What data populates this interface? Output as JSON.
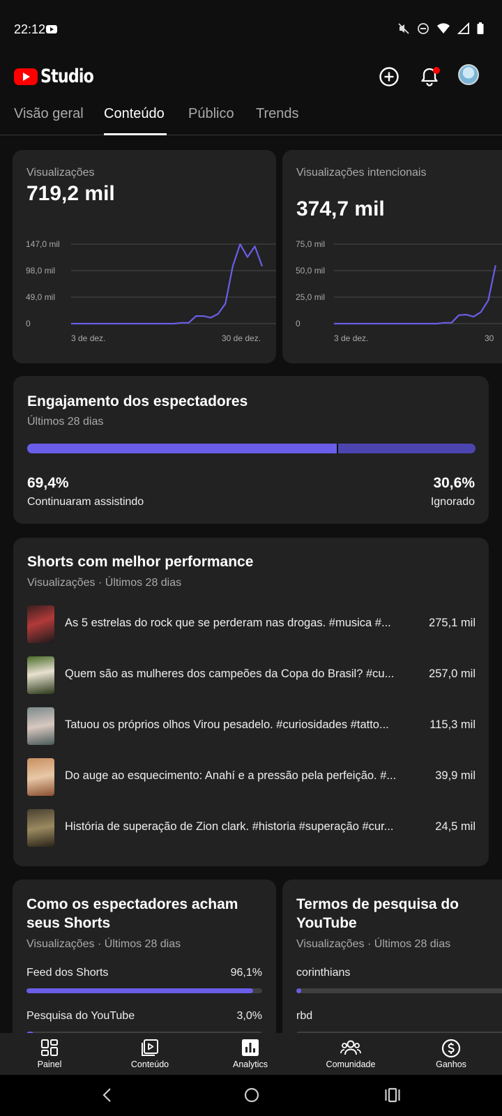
{
  "status_bar": {
    "time": "22:12"
  },
  "header": {
    "logo_text": "Studio"
  },
  "tabs": [
    {
      "label": "Visão geral"
    },
    {
      "label": "Conteúdo"
    },
    {
      "label": "Público"
    },
    {
      "label": "Trends"
    }
  ],
  "metrics": [
    {
      "label": "Visualizações",
      "value": "719,2 mil",
      "chart_data": {
        "type": "line",
        "y_ticks": [
          "147,0 mil",
          "98,0 mil",
          "49,0 mil",
          "0"
        ],
        "ylim": [
          0,
          147000
        ],
        "x_ticks": [
          "3 de dez.",
          "30 de dez."
        ],
        "values": [
          0,
          0,
          0,
          0,
          0,
          0,
          0,
          0,
          0,
          0,
          0,
          0,
          0,
          0,
          0,
          1500,
          1500,
          14000,
          14000,
          11000,
          18000,
          37000,
          106000,
          147000,
          123000,
          143000,
          106000
        ]
      }
    },
    {
      "label": "Visualizações intencionais",
      "value": "374,7 mil",
      "chart_data": {
        "type": "line",
        "y_ticks": [
          "75,0 mil",
          "50,0 mil",
          "25,0 mil",
          "0"
        ],
        "ylim": [
          0,
          75000
        ],
        "x_ticks": [
          "3 de dez.",
          "30"
        ],
        "values": [
          0,
          0,
          0,
          0,
          0,
          0,
          0,
          0,
          0,
          0,
          0,
          0,
          0,
          0,
          0,
          800,
          800,
          8000,
          8500,
          6500,
          11000,
          22000,
          55000
        ]
      }
    }
  ],
  "engagement": {
    "title": "Engajamento dos espectadores",
    "subtitle": "Últimos 28 dias",
    "continued_pct": "69,4%",
    "continued_label": "Continuaram assistindo",
    "continued_fraction": 0.694,
    "skipped_pct": "30,6%",
    "skipped_label": "Ignorado"
  },
  "top_shorts": {
    "title": "Shorts com melhor performance",
    "subtitle": "Visualizações · Últimos 28 dias",
    "items": [
      {
        "title": "As 5 estrelas do rock que se perderam nas drogas. #musica #...",
        "views": "275,1 mil"
      },
      {
        "title": "Quem são as mulheres dos campeões da Copa do Brasil? #cu...",
        "views": "257,0 mil"
      },
      {
        "title": "Tatuou os próprios olhos Virou pesadelo. #curiosidades #tatto...",
        "views": "115,3 mil"
      },
      {
        "title": "Do auge ao esquecimento: Anahí e a pressão pela perfeição. #...",
        "views": "39,9 mil"
      },
      {
        "title": "História de superação de Zion clark. #historia #superação #cur...",
        "views": "24,5 mil"
      }
    ]
  },
  "discovery": {
    "title_line1": "Como os espectadores acham",
    "title_line2": "seus Shorts",
    "subtitle": "Visualizações · Últimos 28 dias",
    "rows": [
      {
        "label": "Feed dos Shorts",
        "value": "96,1%",
        "fraction": 0.961
      },
      {
        "label": "Pesquisa do YouTube",
        "value": "3,0%",
        "fraction": 0.03
      }
    ]
  },
  "search_terms": {
    "title_line1": "Termos de pesquisa do",
    "title_line2": "YouTube",
    "subtitle": "Visualizações · Últimos 28 dias",
    "rows": [
      {
        "label": "corinthians",
        "fraction": 0.02
      },
      {
        "label": "rbd",
        "fraction": 0.01
      }
    ]
  },
  "bottom_nav": [
    {
      "label": "Painel",
      "icon": "dashboard-icon"
    },
    {
      "label": "Conteúdo",
      "icon": "content-icon"
    },
    {
      "label": "Analytics",
      "icon": "analytics-icon"
    },
    {
      "label": "Comunidade",
      "icon": "community-icon"
    },
    {
      "label": "Ganhos",
      "icon": "earn-icon"
    }
  ]
}
